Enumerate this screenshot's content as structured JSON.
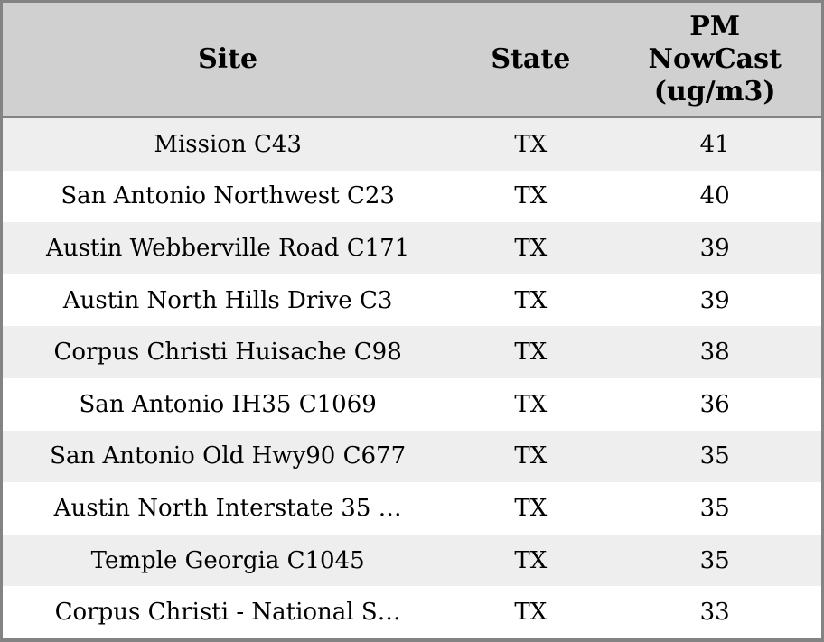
{
  "chart_data": {
    "type": "table",
    "columns": [
      "Site",
      "State",
      "PM NowCast (ug/m3)"
    ],
    "rows": [
      [
        "Mission C43",
        "TX",
        41
      ],
      [
        "San Antonio Northwest C23",
        "TX",
        40
      ],
      [
        "Austin Webberville Road C171",
        "TX",
        39
      ],
      [
        "Austin North Hills Drive C3",
        "TX",
        39
      ],
      [
        "Corpus Christi Huisache C98",
        "TX",
        38
      ],
      [
        "San Antonio IH35 C1069",
        "TX",
        36
      ],
      [
        "San Antonio Old Hwy90 C677",
        "TX",
        35
      ],
      [
        "Austin North Interstate 35 …",
        "TX",
        35
      ],
      [
        "Temple Georgia C1045",
        "TX",
        35
      ],
      [
        "Corpus Christi - National S…",
        "TX",
        33
      ]
    ],
    "title": "",
    "layout_hints": {
      "row_striping": true,
      "alignment": "center"
    }
  },
  "colors": {
    "border": "#838383",
    "header_bg": "#d0d0d0",
    "row_odd_bg": "#eeeeee",
    "row_even_bg": "#ffffff",
    "text": "#000000"
  }
}
